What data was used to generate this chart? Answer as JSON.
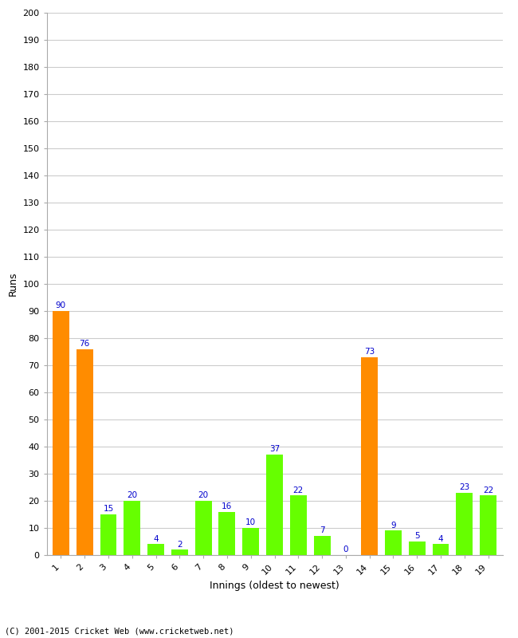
{
  "xlabel": "Innings (oldest to newest)",
  "ylabel": "Runs",
  "categories": [
    "1",
    "2",
    "3",
    "4",
    "5",
    "6",
    "7",
    "8",
    "9",
    "10",
    "11",
    "12",
    "13",
    "14",
    "15",
    "16",
    "17",
    "18",
    "19"
  ],
  "values": [
    90,
    76,
    15,
    20,
    4,
    2,
    20,
    16,
    10,
    37,
    22,
    7,
    0,
    73,
    9,
    5,
    4,
    23,
    22
  ],
  "bar_colors": [
    "#FF8C00",
    "#FF8C00",
    "#66FF00",
    "#66FF00",
    "#66FF00",
    "#66FF00",
    "#66FF00",
    "#66FF00",
    "#66FF00",
    "#66FF00",
    "#66FF00",
    "#66FF00",
    "#66FF00",
    "#FF8C00",
    "#66FF00",
    "#66FF00",
    "#66FF00",
    "#66FF00",
    "#66FF00"
  ],
  "ylim": [
    0,
    200
  ],
  "yticks": [
    0,
    10,
    20,
    30,
    40,
    50,
    60,
    70,
    80,
    90,
    100,
    110,
    120,
    130,
    140,
    150,
    160,
    170,
    180,
    190,
    200
  ],
  "label_color": "#0000CC",
  "label_fontsize": 7.5,
  "background_color": "#ffffff",
  "footer": "(C) 2001-2015 Cricket Web (www.cricketweb.net)"
}
